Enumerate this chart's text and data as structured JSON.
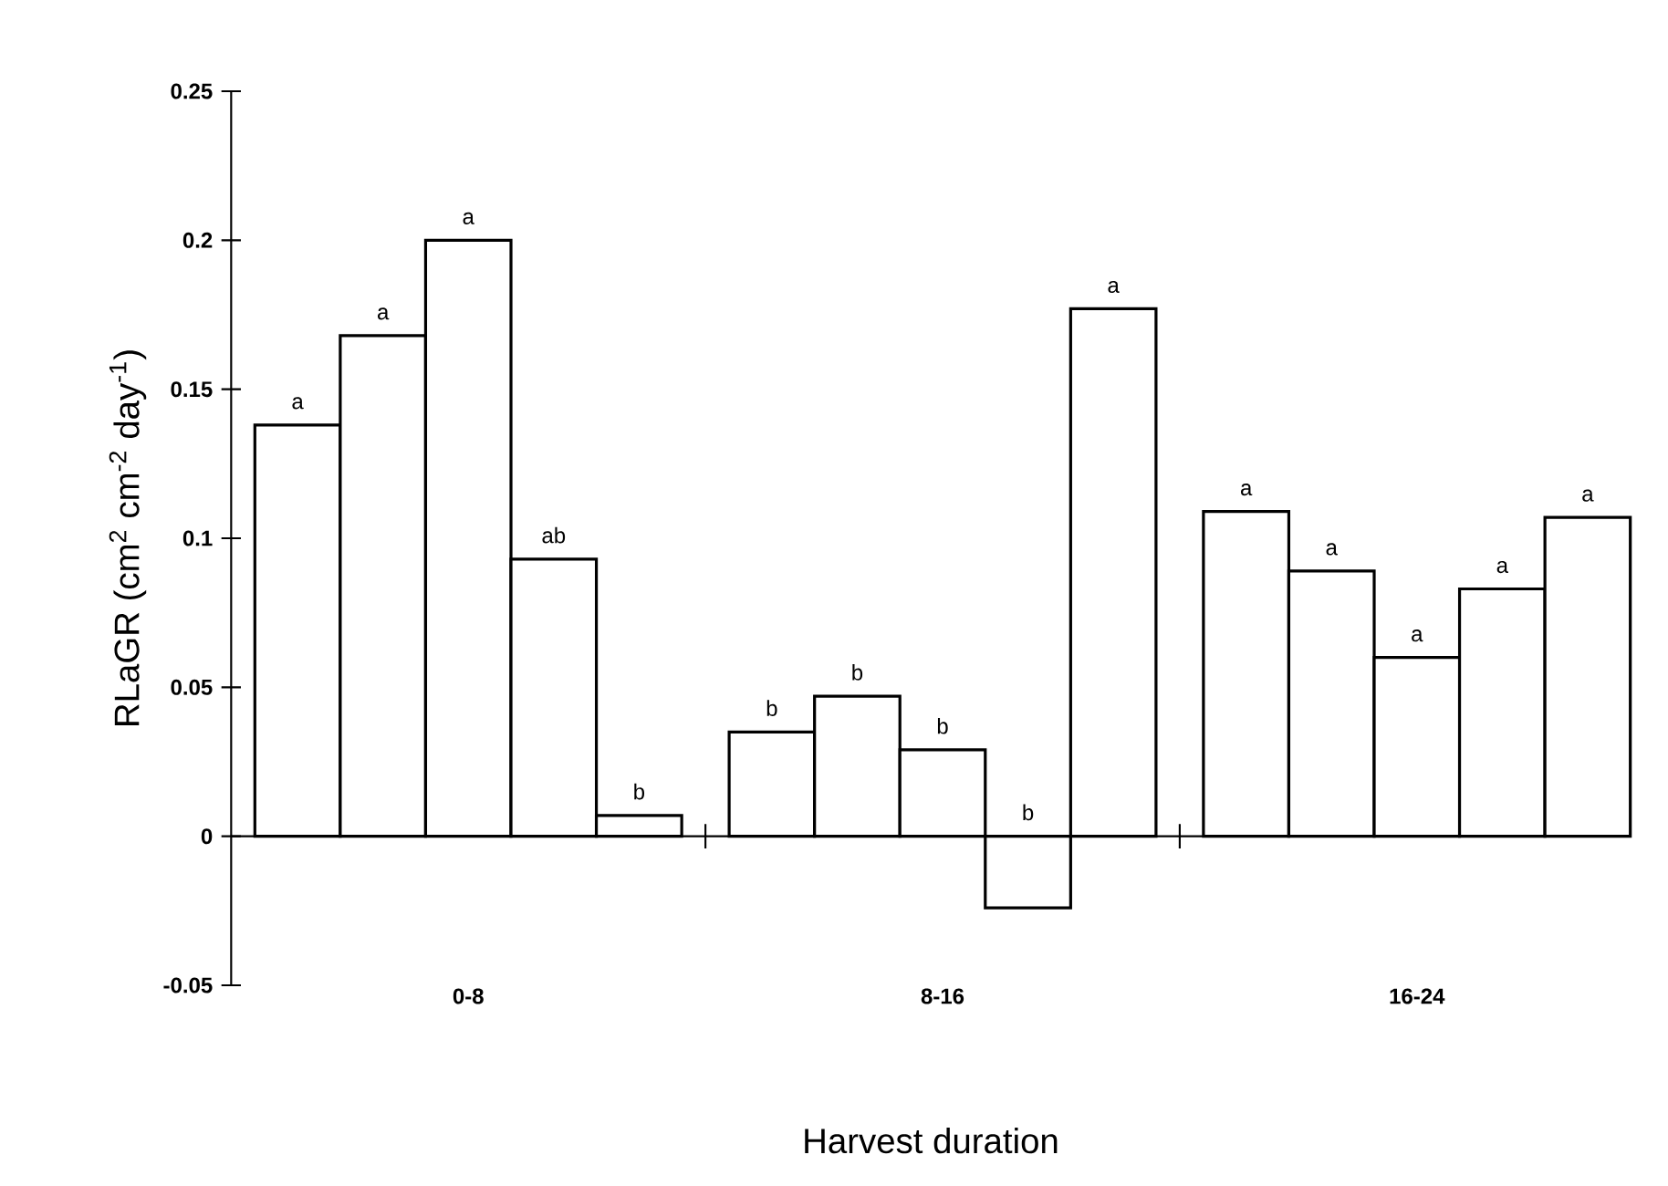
{
  "chart_data": {
    "type": "bar",
    "xlabel": "Harvest duration",
    "ylabel": "RLaGR (cm$^{2}$ cm$^{-2}$ day$^{-1}$)",
    "categories": [
      "0-8",
      "8-16",
      "16-24"
    ],
    "series": [
      {
        "color": "#000000",
        "values": [
          0.138,
          0.035,
          0.109
        ],
        "value_labels": [
          "a",
          "b",
          "a"
        ]
      },
      {
        "color": "#000000",
        "values": [
          0.168,
          0.047,
          0.089
        ],
        "value_labels": [
          "a",
          "b",
          "a"
        ]
      },
      {
        "color": "#000000",
        "values": [
          0.2,
          0.029,
          0.06
        ],
        "value_labels": [
          "a",
          "b",
          "a"
        ]
      },
      {
        "color": "#000000",
        "values": [
          0.093,
          -0.024,
          0.083
        ],
        "value_labels": [
          "ab",
          "b",
          "a"
        ]
      },
      {
        "color": "#000000",
        "values": [
          0.007,
          0.177,
          0.107
        ],
        "value_labels": [
          "b",
          "a",
          "a"
        ]
      }
    ],
    "ylim": [
      -0.05,
      0.25
    ],
    "yticks": [
      -0.05,
      0,
      0.05,
      0.1,
      0.15,
      0.2,
      0.25
    ]
  }
}
